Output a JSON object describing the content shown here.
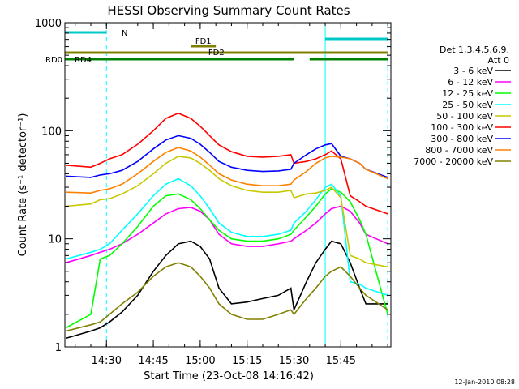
{
  "chart_data": {
    "type": "line",
    "title": "HESSI Observing Summary Count Rates",
    "xlabel": "Start Time (23-Oct-08 14:16:42)",
    "ylabel": "Count Rate (s⁻¹ detector⁻¹)",
    "y_scale": "log",
    "ylim": [
      1,
      1000
    ],
    "xlim": [
      "14:16:42",
      "16:01:00"
    ],
    "x_ticks": [
      "14:30",
      "14:45",
      "15:00",
      "15:15",
      "15:30",
      "15:45"
    ],
    "y_ticks": [
      "1",
      "10",
      "100",
      "1000"
    ],
    "legend_header": [
      "Det 1,3,4,5,6,9,",
      "Att 0"
    ],
    "legend_placement": "right",
    "footer_date": "12-Jan-2010 08:28",
    "series": [
      {
        "name": "3 - 6 keV",
        "color": "#000000",
        "x": [
          "14:17",
          "14:25",
          "14:28",
          "14:31",
          "14:35",
          "14:40",
          "14:45",
          "14:49",
          "14:53",
          "14:57",
          "15:00",
          "15:03",
          "15:06",
          "15:10",
          "15:15",
          "15:20",
          "15:25",
          "15:29",
          "15:30",
          "15:34",
          "15:37",
          "15:40",
          "15:42",
          "15:45",
          "15:48",
          "15:51",
          "15:53",
          "16:00"
        ],
        "y": [
          1.2,
          1.4,
          1.5,
          1.7,
          2.1,
          3.0,
          5.0,
          7.0,
          9.0,
          9.5,
          8.5,
          6.5,
          3.5,
          2.5,
          2.6,
          2.8,
          3.0,
          3.5,
          2.2,
          4.0,
          6.0,
          8.0,
          9.5,
          9.0,
          6.0,
          3.5,
          2.5,
          2.5
        ]
      },
      {
        "name": "6 - 12 keV",
        "color": "#ff00ff",
        "x": [
          "14:17",
          "14:25",
          "14:28",
          "14:31",
          "14:35",
          "14:40",
          "14:45",
          "14:49",
          "14:53",
          "14:57",
          "15:00",
          "15:03",
          "15:06",
          "15:10",
          "15:15",
          "15:20",
          "15:25",
          "15:29",
          "15:30",
          "15:34",
          "15:37",
          "15:40",
          "15:42",
          "15:45",
          "15:48",
          "15:51",
          "15:53",
          "16:00"
        ],
        "y": [
          6.0,
          7.0,
          7.5,
          8.0,
          9.0,
          11.0,
          14.0,
          17.0,
          19.0,
          19.5,
          18.0,
          15.0,
          11.0,
          9.0,
          8.5,
          8.5,
          9.0,
          9.5,
          10.0,
          12.0,
          14.0,
          17.0,
          19.0,
          20.0,
          18.0,
          14.0,
          11.0,
          9.0
        ]
      },
      {
        "name": "12 - 25 keV",
        "color": "#00ff00",
        "x": [
          "14:17",
          "14:25",
          "14:28",
          "14:31",
          "14:35",
          "14:40",
          "14:45",
          "14:49",
          "14:53",
          "14:57",
          "15:00",
          "15:03",
          "15:06",
          "15:10",
          "15:15",
          "15:20",
          "15:25",
          "15:29",
          "15:30",
          "15:34",
          "15:37",
          "15:40",
          "15:42",
          "15:45",
          "15:48",
          "15:51",
          "15:53",
          "16:00"
        ],
        "y": [
          1.5,
          2.0,
          6.5,
          7.0,
          9.0,
          13.0,
          20.0,
          25.0,
          26.0,
          23.0,
          19.0,
          15.0,
          12.0,
          10.0,
          9.5,
          9.5,
          10.0,
          11.0,
          12.0,
          16.0,
          20.0,
          26.0,
          29.0,
          27.0,
          22.0,
          15.0,
          11.0,
          2.0
        ]
      },
      {
        "name": "25 - 50 keV",
        "color": "#00ffff",
        "x": [
          "14:17",
          "14:25",
          "14:28",
          "14:31",
          "14:35",
          "14:40",
          "14:45",
          "14:49",
          "14:53",
          "14:57",
          "15:00",
          "15:03",
          "15:06",
          "15:10",
          "15:15",
          "15:20",
          "15:25",
          "15:29",
          "15:30",
          "15:34",
          "15:37",
          "15:40",
          "15:42",
          "15:45",
          "15:48",
          "15:51",
          "15:53",
          "16:00"
        ],
        "y": [
          6.5,
          7.5,
          8.0,
          9.0,
          12.0,
          17.0,
          25.0,
          32.0,
          36.0,
          31.0,
          25.0,
          19.0,
          14.0,
          11.5,
          10.5,
          10.5,
          11.0,
          12.0,
          14.0,
          18.0,
          23.0,
          30.0,
          32.0,
          25.0,
          4.0,
          3.8,
          3.5,
          3.0
        ]
      },
      {
        "name": "50 - 100 keV",
        "color": "#c8c800",
        "x": [
          "14:17",
          "14:25",
          "14:28",
          "14:31",
          "14:35",
          "14:40",
          "14:45",
          "14:49",
          "14:53",
          "14:57",
          "15:00",
          "15:03",
          "15:06",
          "15:10",
          "15:15",
          "15:20",
          "15:25",
          "15:29",
          "15:30",
          "15:34",
          "15:37",
          "15:40",
          "15:42",
          "15:45",
          "15:48",
          "15:51",
          "15:53",
          "16:00"
        ],
        "y": [
          20.0,
          21.0,
          23.0,
          23.5,
          26.0,
          31.0,
          40.0,
          50.0,
          58.0,
          56.0,
          50.0,
          43.0,
          36.0,
          31.0,
          28.0,
          27.0,
          27.0,
          28.0,
          24.0,
          26.0,
          26.5,
          28.0,
          30.0,
          24.0,
          7.0,
          6.5,
          6.0,
          5.5
        ]
      },
      {
        "name": "100 - 300 keV",
        "color": "#ff0000",
        "x": [
          "14:17",
          "14:25",
          "14:28",
          "14:31",
          "14:35",
          "14:40",
          "14:45",
          "14:49",
          "14:53",
          "14:57",
          "15:00",
          "15:03",
          "15:06",
          "15:10",
          "15:15",
          "15:20",
          "15:25",
          "15:29",
          "15:30",
          "15:34",
          "15:37",
          "15:40",
          "15:42",
          "15:45",
          "15:48",
          "15:51",
          "15:53",
          "16:00"
        ],
        "y": [
          48.0,
          46.0,
          50.0,
          55.0,
          60.0,
          75.0,
          100.0,
          130.0,
          145.0,
          130.0,
          110.0,
          90.0,
          74.0,
          64.0,
          58.0,
          57.0,
          58.0,
          60.0,
          50.0,
          52.0,
          55.0,
          60.0,
          65.0,
          55.0,
          25.0,
          22.0,
          20.0,
          17.0
        ]
      },
      {
        "name": "300 - 800 keV",
        "color": "#0000ff",
        "x": [
          "14:17",
          "14:25",
          "14:28",
          "14:31",
          "14:35",
          "14:40",
          "14:45",
          "14:49",
          "14:53",
          "14:57",
          "15:00",
          "15:03",
          "15:06",
          "15:10",
          "15:15",
          "15:20",
          "15:25",
          "15:29",
          "15:30",
          "15:34",
          "15:37",
          "15:40",
          "15:42",
          "15:45",
          "15:48",
          "15:51",
          "15:53",
          "16:00"
        ],
        "y": [
          38.0,
          37.0,
          39.0,
          40.0,
          43.0,
          52.0,
          68.0,
          82.0,
          90.0,
          85.0,
          75.0,
          63.0,
          52.0,
          46.0,
          43.0,
          42.0,
          42.5,
          44.0,
          50.0,
          60.0,
          68.0,
          74.0,
          76.0,
          58.0,
          55.0,
          50.0,
          44.0,
          37.0
        ]
      },
      {
        "name": "800 - 7000 keV",
        "color": "#ff8000",
        "x": [
          "14:17",
          "14:25",
          "14:28",
          "14:31",
          "14:35",
          "14:40",
          "14:45",
          "14:49",
          "14:53",
          "14:57",
          "15:00",
          "15:03",
          "15:06",
          "15:10",
          "15:15",
          "15:20",
          "15:25",
          "15:29",
          "15:30",
          "15:34",
          "15:37",
          "15:40",
          "15:42",
          "15:45",
          "15:48",
          "15:51",
          "15:53",
          "16:00"
        ],
        "y": [
          27.0,
          26.5,
          28.0,
          29.0,
          32.0,
          40.0,
          52.0,
          63.0,
          70.0,
          65.0,
          57.0,
          48.0,
          40.0,
          35.0,
          32.0,
          31.0,
          31.0,
          32.0,
          35.0,
          42.0,
          50.0,
          56.0,
          58.0,
          57.0,
          55.0,
          50.0,
          44.0,
          36.0
        ]
      },
      {
        "name": "7000 - 20000 keV",
        "color": "#808000",
        "x": [
          "14:17",
          "14:25",
          "14:28",
          "14:31",
          "14:35",
          "14:40",
          "14:45",
          "14:49",
          "14:53",
          "14:57",
          "15:00",
          "15:03",
          "15:06",
          "15:10",
          "15:15",
          "15:20",
          "15:25",
          "15:29",
          "15:30",
          "15:34",
          "15:37",
          "15:40",
          "15:42",
          "15:45",
          "15:48",
          "15:51",
          "15:53",
          "16:00"
        ],
        "y": [
          1.4,
          1.6,
          1.7,
          2.0,
          2.5,
          3.2,
          4.5,
          5.5,
          6.0,
          5.5,
          4.5,
          3.5,
          2.5,
          2.0,
          1.8,
          1.8,
          2.0,
          2.2,
          2.0,
          2.8,
          3.5,
          4.5,
          5.0,
          5.5,
          4.5,
          3.5,
          3.0,
          2.2
        ]
      }
    ],
    "annotations": [
      {
        "label": "N",
        "color": "#00c8c8",
        "x_start": "14:16:42",
        "x_end": "14:30"
      },
      {
        "label": "",
        "color": "#00c8c8",
        "x_start": "15:40",
        "x_end": "16:00"
      },
      {
        "label": "FD1",
        "color": "#808000",
        "x_start": "14:57",
        "x_end": "15:05"
      },
      {
        "label": "FD2",
        "color": "#808000",
        "x_start": "14:16:42",
        "x_end": "16:00"
      },
      {
        "label": "RD0",
        "color": "#008000",
        "x_start": "14:16:42",
        "x_end": "15:30"
      },
      {
        "label": "",
        "color": "#008000",
        "x_start": "15:35",
        "x_end": "16:00"
      },
      {
        "label": "RD4",
        "color": "#008000",
        "x_start": "14:16:42",
        "x_end": "14:17"
      }
    ],
    "vertical_markers": [
      {
        "x": "14:16:42",
        "style": "solid",
        "color": "#00ffff"
      },
      {
        "x": "14:30",
        "style": "dashed",
        "color": "#00ffff"
      },
      {
        "x": "15:40",
        "style": "solid",
        "color": "#00ffff"
      },
      {
        "x": "16:00",
        "style": "dashed",
        "color": "#00ffff"
      }
    ]
  }
}
